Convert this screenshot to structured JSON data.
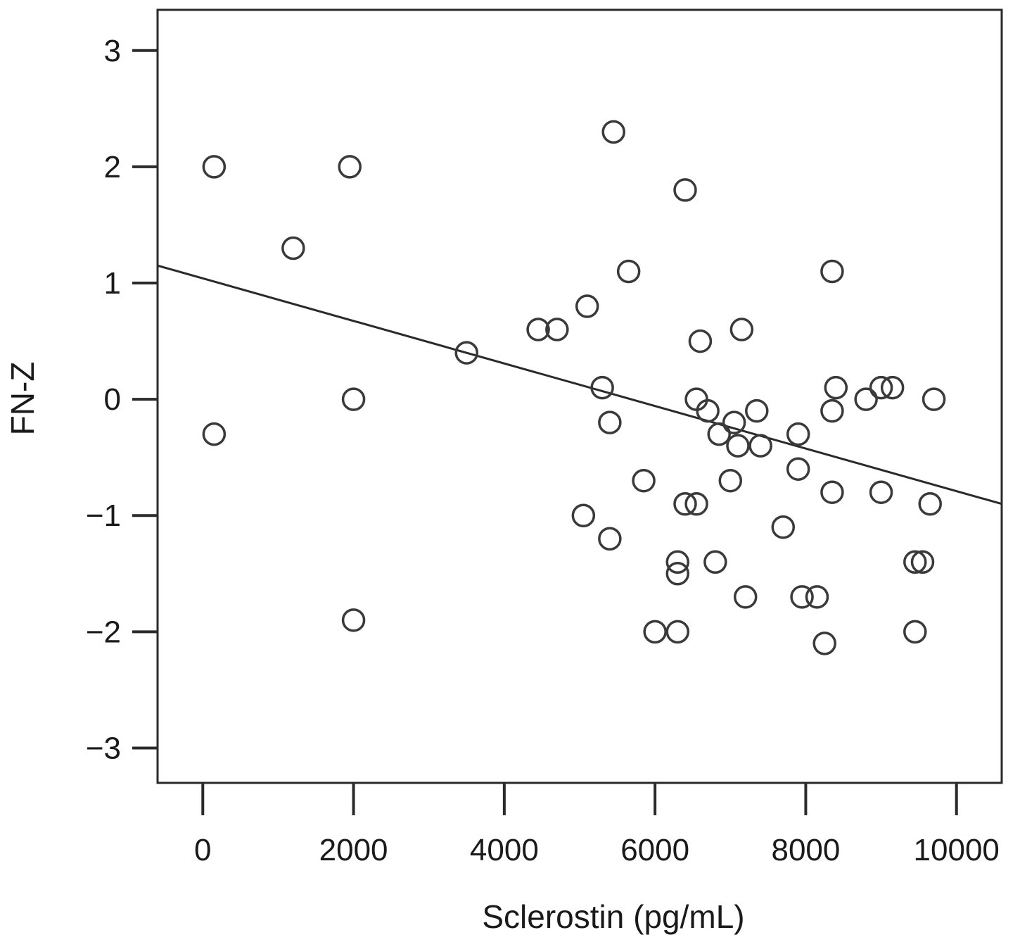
{
  "chart_data": {
    "type": "scatter",
    "xlabel": "Sclerostin (pg/mL)",
    "ylabel": "FN-Z",
    "xlim": [
      -600,
      10600
    ],
    "ylim": [
      -3.3,
      3.35
    ],
    "x_ticks": [
      0,
      2000,
      4000,
      6000,
      8000,
      10000
    ],
    "x_tick_labels": [
      "0",
      "2000",
      "4000",
      "6000",
      "8000",
      "10000"
    ],
    "y_ticks": [
      3,
      2,
      1,
      0,
      -1,
      -2,
      -3
    ],
    "y_tick_labels": [
      "3",
      "2",
      "1",
      "0",
      "−1",
      "−2",
      "−3"
    ],
    "grid": false,
    "fit_line": {
      "x": [
        -600,
        10600
      ],
      "y": [
        1.15,
        -0.9
      ]
    },
    "marker_color": "#3a3a3a",
    "points": [
      {
        "x": 150,
        "y": 2.0
      },
      {
        "x": 1950,
        "y": 2.0
      },
      {
        "x": 1200,
        "y": 1.3
      },
      {
        "x": 150,
        "y": -0.3
      },
      {
        "x": 2000,
        "y": 0.0
      },
      {
        "x": 2000,
        "y": -1.9
      },
      {
        "x": 3500,
        "y": 0.4
      },
      {
        "x": 4450,
        "y": 0.6
      },
      {
        "x": 4700,
        "y": 0.6
      },
      {
        "x": 5100,
        "y": 0.8
      },
      {
        "x": 5450,
        "y": 2.3
      },
      {
        "x": 5650,
        "y": 1.1
      },
      {
        "x": 6400,
        "y": 1.8
      },
      {
        "x": 5300,
        "y": 0.1
      },
      {
        "x": 5400,
        "y": -0.2
      },
      {
        "x": 5850,
        "y": -0.7
      },
      {
        "x": 5050,
        "y": -1.0
      },
      {
        "x": 5400,
        "y": -1.2
      },
      {
        "x": 6000,
        "y": -2.0
      },
      {
        "x": 6300,
        "y": -2.0
      },
      {
        "x": 6300,
        "y": -1.4
      },
      {
        "x": 6300,
        "y": -1.5
      },
      {
        "x": 6400,
        "y": -0.9
      },
      {
        "x": 6550,
        "y": -0.9
      },
      {
        "x": 6600,
        "y": 0.5
      },
      {
        "x": 6550,
        "y": 0.0
      },
      {
        "x": 6700,
        "y": -0.1
      },
      {
        "x": 6850,
        "y": -0.3
      },
      {
        "x": 6800,
        "y": -1.4
      },
      {
        "x": 7050,
        "y": -0.2
      },
      {
        "x": 7100,
        "y": -0.4
      },
      {
        "x": 7000,
        "y": -0.7
      },
      {
        "x": 7150,
        "y": 0.6
      },
      {
        "x": 7350,
        "y": -0.1
      },
      {
        "x": 7400,
        "y": -0.4
      },
      {
        "x": 7200,
        "y": -1.7
      },
      {
        "x": 7700,
        "y": -1.1
      },
      {
        "x": 7900,
        "y": -0.3
      },
      {
        "x": 7900,
        "y": -0.6
      },
      {
        "x": 7950,
        "y": -1.7
      },
      {
        "x": 8150,
        "y": -1.7
      },
      {
        "x": 8250,
        "y": -2.1
      },
      {
        "x": 8350,
        "y": 1.1
      },
      {
        "x": 8400,
        "y": 0.1
      },
      {
        "x": 8350,
        "y": -0.1
      },
      {
        "x": 8350,
        "y": -0.8
      },
      {
        "x": 8800,
        "y": 0.0
      },
      {
        "x": 9000,
        "y": 0.1
      },
      {
        "x": 9150,
        "y": 0.1
      },
      {
        "x": 9000,
        "y": -0.8
      },
      {
        "x": 9450,
        "y": -1.4
      },
      {
        "x": 9550,
        "y": -1.4
      },
      {
        "x": 9450,
        "y": -2.0
      },
      {
        "x": 9650,
        "y": -0.9
      },
      {
        "x": 9700,
        "y": 0.0
      }
    ]
  }
}
